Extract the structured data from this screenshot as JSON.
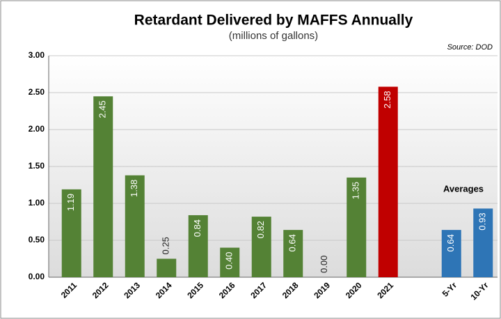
{
  "chart_data": {
    "type": "bar",
    "title": "Retardant Delivered by MAFFS Annually",
    "subtitle": "(millions of gallons)",
    "annotations": [
      "Source: DOD",
      "Averages"
    ],
    "categories": [
      "2011",
      "2012",
      "2013",
      "2014",
      "2015",
      "2016",
      "2017",
      "2018",
      "2019",
      "2020",
      "2021",
      null,
      "5-Yr",
      "10-Yr"
    ],
    "values": [
      1.19,
      2.45,
      1.38,
      0.25,
      0.84,
      0.4,
      0.82,
      0.64,
      0.0,
      1.35,
      2.58,
      null,
      0.64,
      0.93
    ],
    "value_labels": [
      "1.19",
      "2.45",
      "1.38",
      "0.25",
      "0.84",
      "0.40",
      "0.82",
      "0.64",
      "0.00",
      "1.35",
      "2.58",
      null,
      "0.64",
      "0.93"
    ],
    "colors": [
      "#548235",
      "#548235",
      "#548235",
      "#548235",
      "#548235",
      "#548235",
      "#548235",
      "#548235",
      "#548235",
      "#548235",
      "#c00000",
      null,
      "#2e75b6",
      "#2e75b6"
    ],
    "ylim": [
      0,
      3
    ],
    "yticks": [
      {
        "value": 0,
        "label": "0.00"
      },
      {
        "value": 0.5,
        "label": "0.50"
      },
      {
        "value": 1,
        "label": "1.00"
      },
      {
        "value": 1.5,
        "label": "1.50"
      },
      {
        "value": 2,
        "label": "2.00"
      },
      {
        "value": 2.5,
        "label": "2.50"
      },
      {
        "value": 3,
        "label": "3.00"
      }
    ],
    "grid": true
  }
}
